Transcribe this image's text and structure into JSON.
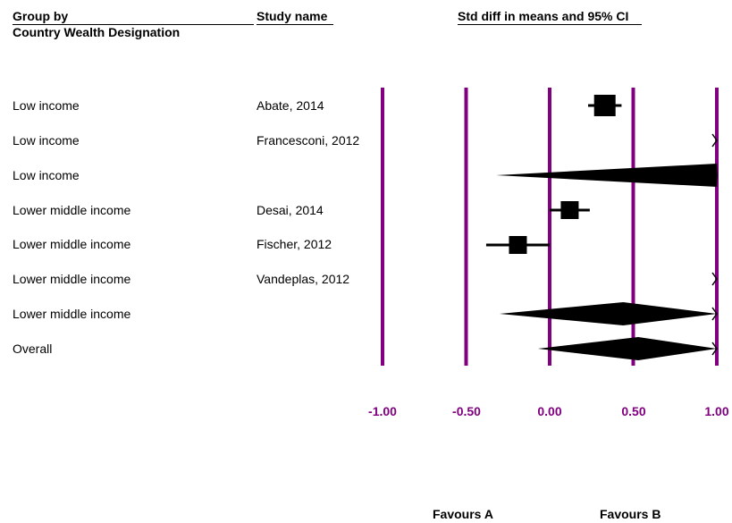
{
  "headers": {
    "group_by": "Group by",
    "group_by_sub": "Country Wealth Designation",
    "study_name": "Study name",
    "effect": "Std diff in means and 95% CI"
  },
  "favours": {
    "left": "Favours A",
    "right": "Favours B"
  },
  "chart_data": {
    "type": "forest",
    "title": "Std diff in means and 95% CI",
    "xlim": [
      -1.0,
      1.0
    ],
    "x_ticks": [
      -1.0,
      -0.5,
      0.0,
      0.5,
      1.0
    ],
    "x_tick_labels": [
      "-1.00",
      "-0.50",
      "0.00",
      "0.50",
      "1.00"
    ],
    "gridline_color": "#800080",
    "rows": [
      {
        "group": "Low income",
        "study": "Abate, 2014",
        "kind": "study",
        "estimate": 0.33,
        "lower": 0.23,
        "upper": 0.43,
        "size": 24
      },
      {
        "group": "Low income",
        "study": "Francesconi, 2012",
        "kind": "study_offscale",
        "estimate": null,
        "lower": 1.0,
        "upper": null
      },
      {
        "group": "Low income",
        "study": "",
        "kind": "subtotal",
        "estimate": 1.0,
        "lower": -0.32,
        "upper": 1.0
      },
      {
        "group": "Lower middle income",
        "study": "Desai, 2014",
        "kind": "study",
        "estimate": 0.12,
        "lower": 0.0,
        "upper": 0.24,
        "size": 20
      },
      {
        "group": "Lower middle income",
        "study": "Fischer, 2012",
        "kind": "study",
        "estimate": -0.19,
        "lower": -0.38,
        "upper": 0.0,
        "size": 20
      },
      {
        "group": "Lower middle income",
        "study": "Vandeplas, 2012",
        "kind": "study_offscale",
        "estimate": null,
        "lower": 1.0,
        "upper": null
      },
      {
        "group": "Lower middle income",
        "study": "",
        "kind": "subtotal",
        "estimate": 0.44,
        "lower": -0.3,
        "upper": 1.0
      },
      {
        "group": "Overall",
        "study": "",
        "kind": "overall",
        "estimate": 0.53,
        "lower": -0.07,
        "upper": 1.0
      }
    ]
  }
}
